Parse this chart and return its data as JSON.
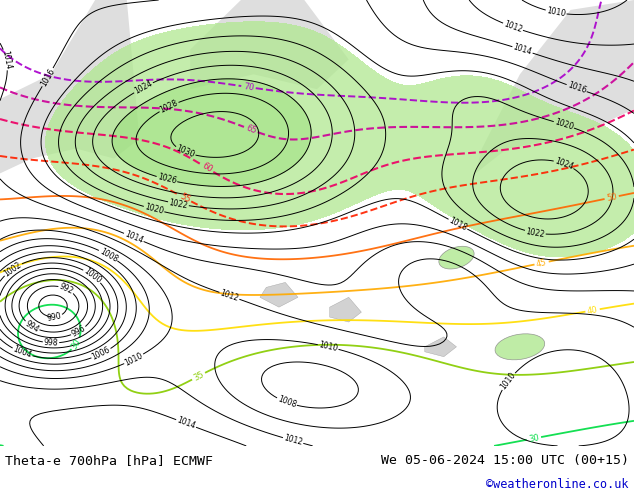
{
  "title_left": "Theta-e 700hPa [hPa] ECMWF",
  "title_right": "We 05-06-2024 15:00 UTC (00+15)",
  "copyright": "©weatheronline.co.uk",
  "figsize": [
    6.34,
    4.9
  ],
  "dpi": 100,
  "title_fontsize": 9.5,
  "copyright_color": "#0000cc",
  "bottom_text_color": "#000000",
  "bg_land": "#d8d8d8",
  "bg_ocean": "#d8d8d8",
  "green_fill": "#b8f0a0"
}
